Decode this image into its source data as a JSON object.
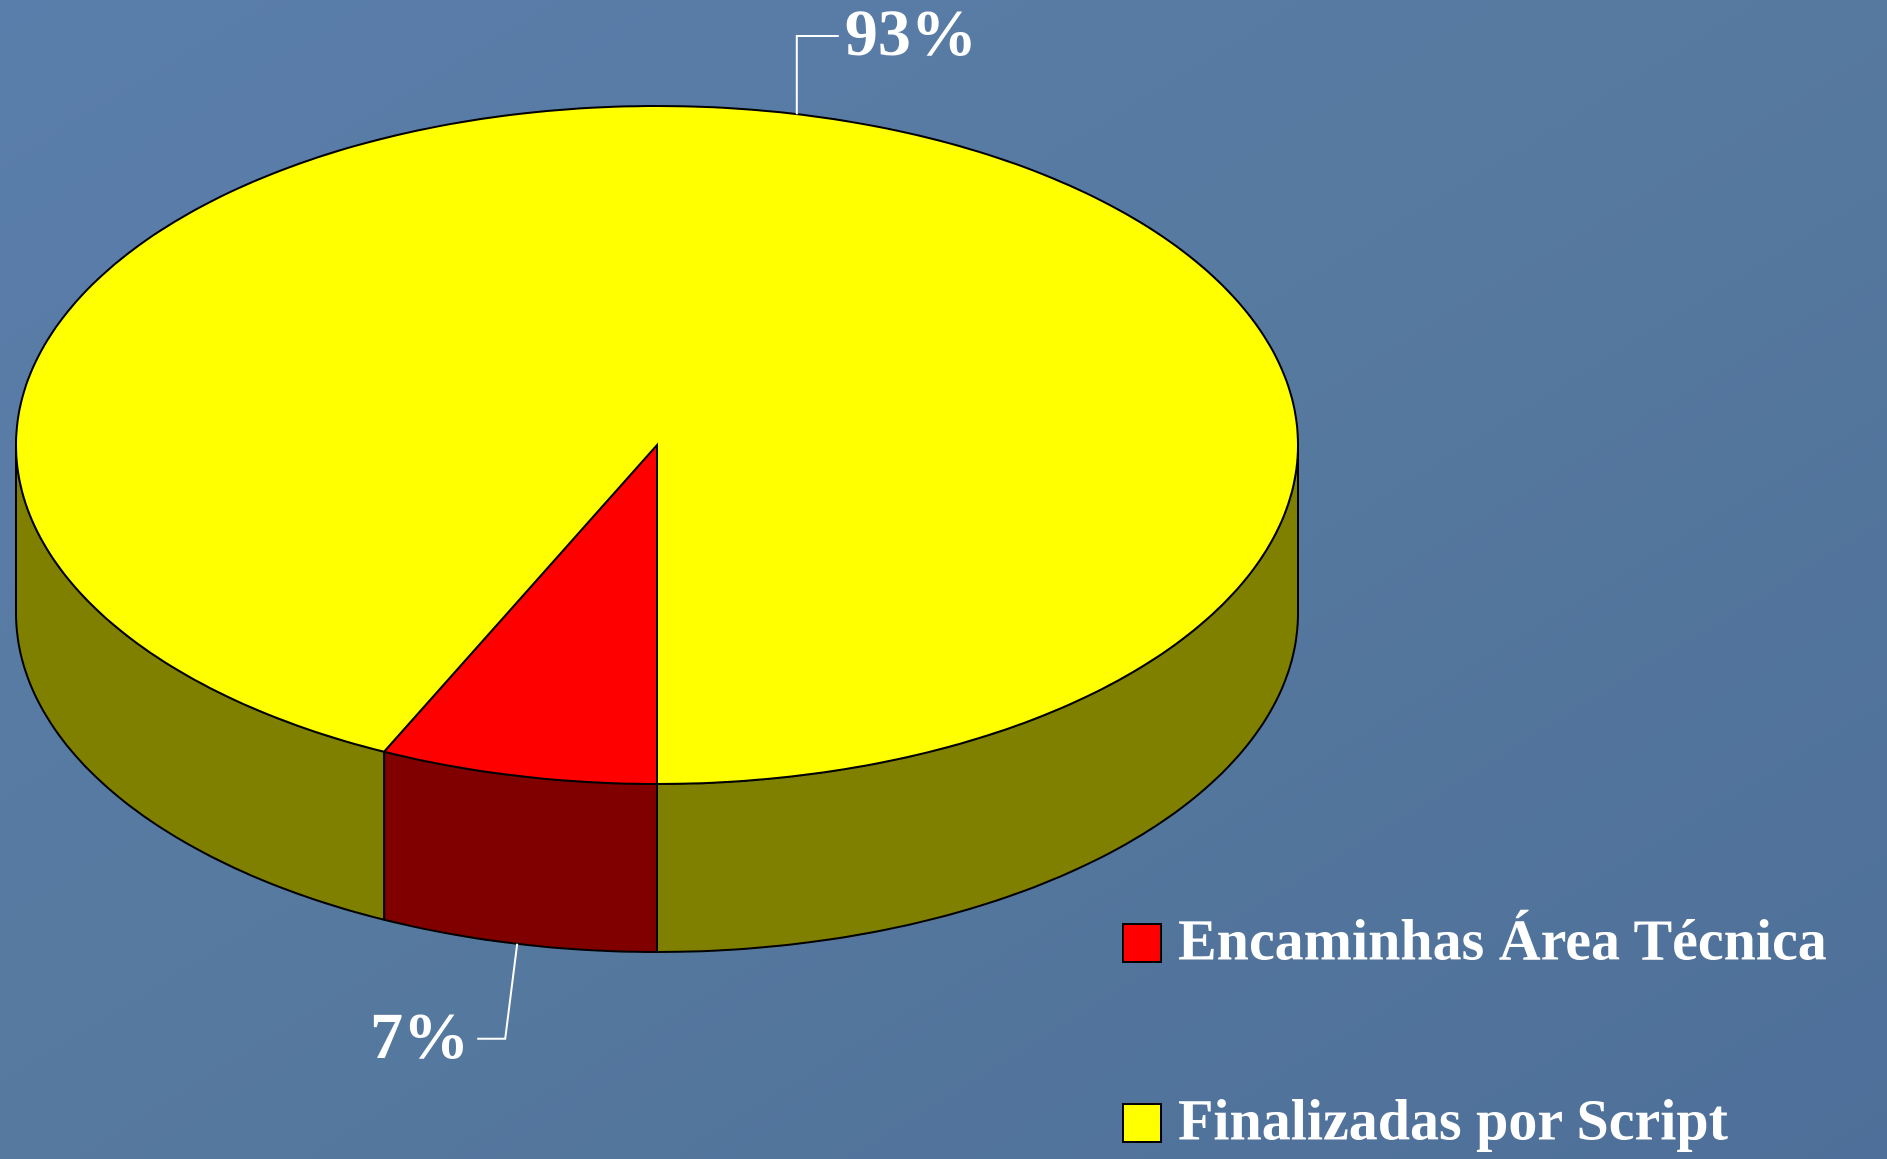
{
  "chart_data": {
    "type": "pie3d",
    "categories": [
      "Encaminhas Área Técnica",
      "Finalizadas por Script"
    ],
    "values": [
      7,
      93
    ],
    "value_labels": [
      "7%",
      "93%"
    ],
    "colors": [
      "#ff0000",
      "#ffff00"
    ],
    "side_colors": [
      "#800000",
      "#808000"
    ],
    "legend": "right"
  }
}
